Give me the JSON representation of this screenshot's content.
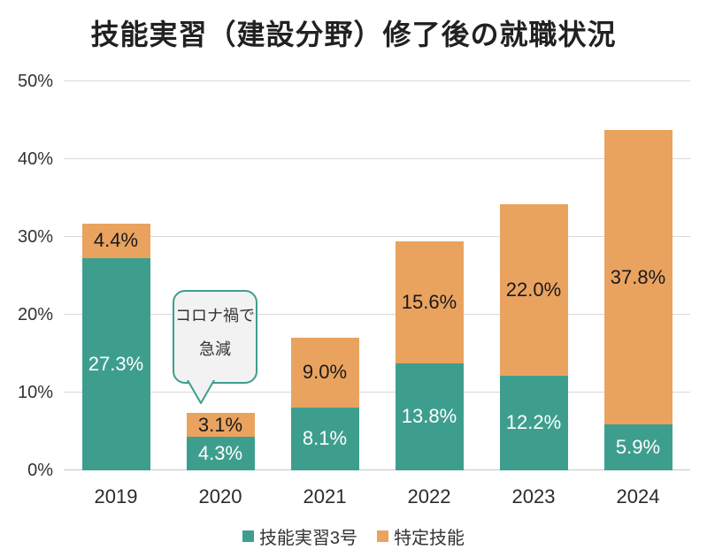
{
  "page": {
    "background": "#ffffff"
  },
  "chart_data": {
    "type": "bar",
    "stacked": true,
    "title": "技能実習（建設分野）修了後の就職状況",
    "categories": [
      "2019",
      "2020",
      "2021",
      "2022",
      "2023",
      "2024"
    ],
    "series": [
      {
        "name": "技能実習3号",
        "color": "#3E9E8E",
        "label_color": "#FFFFFF",
        "values": [
          27.3,
          4.3,
          8.1,
          13.8,
          12.2,
          5.9
        ]
      },
      {
        "name": "特定技能",
        "color": "#E9A35F",
        "label_color": "#1A1A1A",
        "values": [
          4.4,
          3.1,
          9.0,
          15.6,
          22.0,
          37.8
        ]
      }
    ],
    "totals": [
      31.7,
      7.4,
      17.1,
      29.4,
      34.2,
      43.7
    ],
    "value_label_suffix": "%",
    "ylim": [
      0,
      50
    ],
    "yticks": [
      "0%",
      "10%",
      "20%",
      "30%",
      "40%",
      "50%"
    ],
    "grid": true,
    "legend_position": "bottom",
    "annotation": {
      "line1": "コロナ禍で",
      "line2": "急減",
      "target_category": "2020",
      "border_color": "#3E9E8E",
      "bg_color": "#F2F2F2"
    }
  }
}
